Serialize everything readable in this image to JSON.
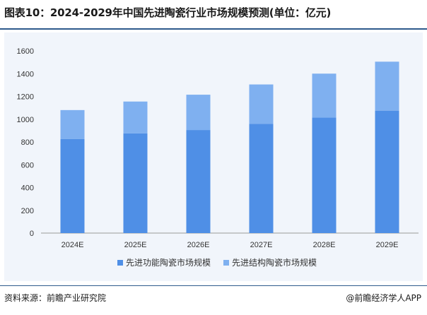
{
  "title": "图表10：2024-2029年中国先进陶瓷行业市场规模预测(单位：亿元)",
  "source": "资料来源：前瞻产业研究院",
  "credit": "@前瞻经济学人APP",
  "chart_data": {
    "type": "bar",
    "stacked": true,
    "categories": [
      "2024E",
      "2025E",
      "2026E",
      "2027E",
      "2028E",
      "2029E"
    ],
    "series": [
      {
        "name": "先进功能陶瓷市场规模",
        "color": "#4f8fe6",
        "values": [
          825,
          875,
          905,
          960,
          1015,
          1075
        ]
      },
      {
        "name": "先进结构陶瓷市场规模",
        "color": "#7fb0f0",
        "values": [
          255,
          280,
          310,
          345,
          385,
          430
        ]
      }
    ],
    "ylim": [
      0,
      1600
    ],
    "yticks": [
      0,
      200,
      400,
      600,
      800,
      1000,
      1200,
      1400,
      1600
    ],
    "grid": false,
    "legend": "bottom"
  }
}
